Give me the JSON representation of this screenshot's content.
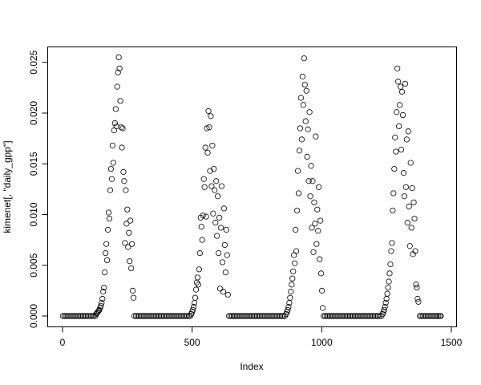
{
  "chart_data": {
    "type": "scatter",
    "title": "",
    "xlabel": "Index",
    "ylabel": "kimenet[, \"daily_gpp\"]",
    "xlim": [
      1,
      1460
    ],
    "ylim": [
      0,
      0.0255
    ],
    "x_ticks": [
      0,
      500,
      1000,
      1500
    ],
    "x_tick_labels": [
      "0",
      "500",
      "1000",
      "1500"
    ],
    "y_ticks": [
      0,
      0.005,
      0.01,
      0.015,
      0.02,
      0.025
    ],
    "y_tick_labels": [
      "0.000",
      "0.005",
      "0.010",
      "0.015",
      "0.020",
      "0.025"
    ],
    "grid": false,
    "marker": "open-circle",
    "marker_color": "#000000",
    "points": [
      [
        1,
        0
      ],
      [
        7,
        0
      ],
      [
        13,
        0
      ],
      [
        19,
        0
      ],
      [
        25,
        0
      ],
      [
        31,
        0
      ],
      [
        37,
        0
      ],
      [
        43,
        0
      ],
      [
        49,
        0
      ],
      [
        55,
        0
      ],
      [
        61,
        0
      ],
      [
        67,
        0
      ],
      [
        73,
        0
      ],
      [
        79,
        0
      ],
      [
        85,
        0
      ],
      [
        91,
        0
      ],
      [
        97,
        0
      ],
      [
        103,
        0
      ],
      [
        109,
        0
      ],
      [
        115,
        0
      ],
      [
        121,
        0
      ],
      [
        127,
        0
      ],
      [
        130,
        0.0002
      ],
      [
        133,
        0.0003
      ],
      [
        136,
        0.0004
      ],
      [
        139,
        0.0005
      ],
      [
        142,
        0.0006
      ],
      [
        145,
        0.0008
      ],
      [
        148,
        0.001
      ],
      [
        151,
        0.0013
      ],
      [
        154,
        0.0017
      ],
      [
        157,
        0.0024
      ],
      [
        160,
        0.0028
      ],
      [
        163,
        0.0043
      ],
      [
        166,
        0.0062
      ],
      [
        169,
        0.0071
      ],
      [
        172,
        0.0055
      ],
      [
        175,
        0.0085
      ],
      [
        178,
        0.0102
      ],
      [
        181,
        0.0096
      ],
      [
        184,
        0.0124
      ],
      [
        187,
        0.0145
      ],
      [
        190,
        0.0135
      ],
      [
        193,
        0.0168
      ],
      [
        196,
        0.0151
      ],
      [
        199,
        0.0183
      ],
      [
        202,
        0.019
      ],
      [
        205,
        0.0204
      ],
      [
        208,
        0.0187
      ],
      [
        211,
        0.0226
      ],
      [
        214,
        0.024
      ],
      [
        217,
        0.0255
      ],
      [
        220,
        0.0244
      ],
      [
        223,
        0.0212
      ],
      [
        226,
        0.0186
      ],
      [
        229,
        0.0166
      ],
      [
        232,
        0.0185
      ],
      [
        235,
        0.0142
      ],
      [
        238,
        0.0133
      ],
      [
        241,
        0.0072
      ],
      [
        244,
        0.0124
      ],
      [
        247,
        0.0091
      ],
      [
        250,
        0.0105
      ],
      [
        253,
        0.0068
      ],
      [
        256,
        0.0082
      ],
      [
        259,
        0.0054
      ],
      [
        262,
        0.0094
      ],
      [
        265,
        0.0047
      ],
      [
        268,
        0.0071
      ],
      [
        271,
        0.0025
      ],
      [
        274,
        0.0018
      ],
      [
        277,
        0
      ],
      [
        283,
        0
      ],
      [
        289,
        0
      ],
      [
        295,
        0
      ],
      [
        301,
        0
      ],
      [
        307,
        0
      ],
      [
        313,
        0
      ],
      [
        319,
        0
      ],
      [
        325,
        0
      ],
      [
        331,
        0
      ],
      [
        337,
        0
      ],
      [
        343,
        0
      ],
      [
        349,
        0
      ],
      [
        355,
        0
      ],
      [
        361,
        0
      ],
      [
        367,
        0
      ],
      [
        373,
        0
      ],
      [
        379,
        0
      ],
      [
        385,
        0
      ],
      [
        391,
        0
      ],
      [
        397,
        0
      ],
      [
        403,
        0
      ],
      [
        409,
        0
      ],
      [
        415,
        0
      ],
      [
        421,
        0
      ],
      [
        427,
        0
      ],
      [
        433,
        0
      ],
      [
        439,
        0
      ],
      [
        445,
        0
      ],
      [
        451,
        0
      ],
      [
        457,
        0
      ],
      [
        463,
        0
      ],
      [
        469,
        0
      ],
      [
        475,
        0
      ],
      [
        481,
        0
      ],
      [
        487,
        0
      ],
      [
        493,
        0
      ],
      [
        497,
        0.0002
      ],
      [
        500,
        0.0004
      ],
      [
        503,
        0.0006
      ],
      [
        506,
        0.0009
      ],
      [
        509,
        0.0013
      ],
      [
        512,
        0.0018
      ],
      [
        515,
        0.0026
      ],
      [
        518,
        0.0033
      ],
      [
        521,
        0.0038
      ],
      [
        524,
        0.0031
      ],
      [
        527,
        0.0046
      ],
      [
        530,
        0.0062
      ],
      [
        533,
        0.0097
      ],
      [
        536,
        0.0088
      ],
      [
        539,
        0.0075
      ],
      [
        542,
        0.0099
      ],
      [
        545,
        0.0135
      ],
      [
        548,
        0.0127
      ],
      [
        551,
        0.0166
      ],
      [
        554,
        0.0098
      ],
      [
        557,
        0.0185
      ],
      [
        560,
        0.0161
      ],
      [
        563,
        0.0202
      ],
      [
        566,
        0.0186
      ],
      [
        569,
        0.0143
      ],
      [
        572,
        0.0197
      ],
      [
        575,
        0.0128
      ],
      [
        578,
        0.0168
      ],
      [
        581,
        0.0101
      ],
      [
        584,
        0.0145
      ],
      [
        587,
        0.0124
      ],
      [
        590,
        0.0092
      ],
      [
        593,
        0.0133
      ],
      [
        596,
        0.0079
      ],
      [
        599,
        0.0118
      ],
      [
        602,
        0.0062
      ],
      [
        605,
        0.0097
      ],
      [
        608,
        0.0027
      ],
      [
        611,
        0.0087
      ],
      [
        614,
        0.0128
      ],
      [
        617,
        0.0053
      ],
      [
        620,
        0.0024
      ],
      [
        623,
        0.0106
      ],
      [
        626,
        0.007
      ],
      [
        629,
        0.0043
      ],
      [
        632,
        0.0085
      ],
      [
        635,
        0.006
      ],
      [
        638,
        0.0021
      ],
      [
        642,
        0
      ],
      [
        648,
        0
      ],
      [
        654,
        0
      ],
      [
        660,
        0
      ],
      [
        666,
        0
      ],
      [
        672,
        0
      ],
      [
        678,
        0
      ],
      [
        684,
        0
      ],
      [
        690,
        0
      ],
      [
        696,
        0
      ],
      [
        702,
        0
      ],
      [
        708,
        0
      ],
      [
        714,
        0
      ],
      [
        720,
        0
      ],
      [
        726,
        0
      ],
      [
        732,
        0
      ],
      [
        738,
        0
      ],
      [
        744,
        0
      ],
      [
        750,
        0
      ],
      [
        756,
        0
      ],
      [
        762,
        0
      ],
      [
        768,
        0
      ],
      [
        774,
        0
      ],
      [
        780,
        0
      ],
      [
        786,
        0
      ],
      [
        792,
        0
      ],
      [
        798,
        0
      ],
      [
        804,
        0
      ],
      [
        810,
        0
      ],
      [
        816,
        0
      ],
      [
        822,
        0
      ],
      [
        828,
        0
      ],
      [
        834,
        0
      ],
      [
        840,
        0
      ],
      [
        846,
        0
      ],
      [
        852,
        0
      ],
      [
        858,
        0
      ],
      [
        863,
        0.0002
      ],
      [
        866,
        0.0004
      ],
      [
        869,
        0.0006
      ],
      [
        872,
        0.0009
      ],
      [
        875,
        0.0013
      ],
      [
        878,
        0.0018
      ],
      [
        881,
        0.0024
      ],
      [
        884,
        0.0031
      ],
      [
        887,
        0.0037
      ],
      [
        890,
        0.0044
      ],
      [
        893,
        0.006
      ],
      [
        896,
        0.0052
      ],
      [
        899,
        0.0085
      ],
      [
        902,
        0.0064
      ],
      [
        905,
        0.0104
      ],
      [
        908,
        0.0143
      ],
      [
        911,
        0.0121
      ],
      [
        914,
        0.0163
      ],
      [
        917,
        0.0185
      ],
      [
        920,
        0.0215
      ],
      [
        923,
        0.0174
      ],
      [
        926,
        0.0236
      ],
      [
        929,
        0.0208
      ],
      [
        932,
        0.0254
      ],
      [
        935,
        0.0228
      ],
      [
        938,
        0.0192
      ],
      [
        941,
        0.0222
      ],
      [
        944,
        0.0157
      ],
      [
        947,
        0.0184
      ],
      [
        950,
        0.0133
      ],
      [
        953,
        0.0201
      ],
      [
        956,
        0.0118
      ],
      [
        959,
        0.0148
      ],
      [
        962,
        0.0087
      ],
      [
        965,
        0.0133
      ],
      [
        968,
        0.0063
      ],
      [
        971,
        0.0112
      ],
      [
        974,
        0.0091
      ],
      [
        977,
        0.0177
      ],
      [
        980,
        0.0071
      ],
      [
        983,
        0.0105
      ],
      [
        986,
        0.0084
      ],
      [
        989,
        0.0127
      ],
      [
        992,
        0.0056
      ],
      [
        995,
        0.0094
      ],
      [
        998,
        0.0042
      ],
      [
        1001,
        0.0025
      ],
      [
        1004,
        0.0008
      ],
      [
        1007,
        0
      ],
      [
        1013,
        0
      ],
      [
        1019,
        0
      ],
      [
        1025,
        0
      ],
      [
        1031,
        0
      ],
      [
        1037,
        0
      ],
      [
        1043,
        0
      ],
      [
        1049,
        0
      ],
      [
        1055,
        0
      ],
      [
        1061,
        0
      ],
      [
        1067,
        0
      ],
      [
        1073,
        0
      ],
      [
        1079,
        0
      ],
      [
        1085,
        0
      ],
      [
        1091,
        0
      ],
      [
        1097,
        0
      ],
      [
        1103,
        0
      ],
      [
        1109,
        0
      ],
      [
        1115,
        0
      ],
      [
        1121,
        0
      ],
      [
        1127,
        0
      ],
      [
        1133,
        0
      ],
      [
        1139,
        0
      ],
      [
        1145,
        0
      ],
      [
        1151,
        0
      ],
      [
        1157,
        0
      ],
      [
        1163,
        0
      ],
      [
        1169,
        0
      ],
      [
        1175,
        0
      ],
      [
        1181,
        0
      ],
      [
        1187,
        0
      ],
      [
        1193,
        0
      ],
      [
        1199,
        0
      ],
      [
        1205,
        0
      ],
      [
        1211,
        0
      ],
      [
        1217,
        0
      ],
      [
        1223,
        0
      ],
      [
        1231,
        0
      ],
      [
        1235,
        0.0002
      ],
      [
        1238,
        0.0004
      ],
      [
        1241,
        0.0006
      ],
      [
        1244,
        0.0009
      ],
      [
        1247,
        0.0013
      ],
      [
        1250,
        0.0017
      ],
      [
        1253,
        0.0022
      ],
      [
        1256,
        0.0028
      ],
      [
        1259,
        0.0034
      ],
      [
        1262,
        0.0042
      ],
      [
        1265,
        0.0051
      ],
      [
        1268,
        0.0064
      ],
      [
        1271,
        0.0072
      ],
      [
        1274,
        0.0104
      ],
      [
        1277,
        0.0121
      ],
      [
        1280,
        0.0145
      ],
      [
        1283,
        0.0176
      ],
      [
        1286,
        0.0162
      ],
      [
        1289,
        0.0201
      ],
      [
        1292,
        0.0244
      ],
      [
        1295,
        0.0231
      ],
      [
        1298,
        0.0187
      ],
      [
        1301,
        0.0208
      ],
      [
        1304,
        0.0226
      ],
      [
        1307,
        0.0164
      ],
      [
        1310,
        0.0221
      ],
      [
        1313,
        0.0198
      ],
      [
        1316,
        0.0141
      ],
      [
        1319,
        0.0118
      ],
      [
        1322,
        0.0229
      ],
      [
        1325,
        0.0127
      ],
      [
        1328,
        0.0174
      ],
      [
        1331,
        0.0092
      ],
      [
        1334,
        0.0182
      ],
      [
        1337,
        0.0108
      ],
      [
        1340,
        0.0069
      ],
      [
        1343,
        0.0151
      ],
      [
        1346,
        0.0087
      ],
      [
        1349,
        0.0126
      ],
      [
        1352,
        0.0061
      ],
      [
        1355,
        0.0112
      ],
      [
        1358,
        0.0096
      ],
      [
        1361,
        0.0064
      ],
      [
        1364,
        0.0031
      ],
      [
        1367,
        0.0028
      ],
      [
        1370,
        0.0017
      ],
      [
        1373,
        0.0014
      ],
      [
        1378,
        0
      ],
      [
        1384,
        0
      ],
      [
        1390,
        0
      ],
      [
        1396,
        0
      ],
      [
        1402,
        0
      ],
      [
        1408,
        0
      ],
      [
        1414,
        0
      ],
      [
        1420,
        0
      ],
      [
        1426,
        0
      ],
      [
        1432,
        0
      ],
      [
        1438,
        0
      ],
      [
        1444,
        0
      ],
      [
        1450,
        0
      ],
      [
        1456,
        0
      ],
      [
        1460,
        0
      ]
    ]
  }
}
